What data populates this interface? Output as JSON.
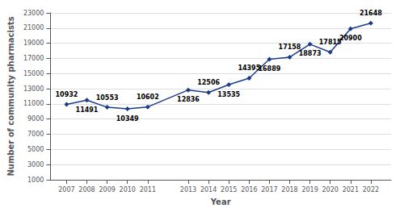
{
  "chart_data": {
    "type": "line",
    "xlabel": "Year",
    "ylabel": "Number of community pharmacists",
    "x": [
      2007,
      2008,
      2009,
      2010,
      2011,
      2013,
      2014,
      2015,
      2016,
      2017,
      2018,
      2019,
      2020,
      2021,
      2022
    ],
    "values": [
      10932,
      11491,
      10553,
      10349,
      10602,
      12836,
      12506,
      13535,
      14395,
      16889,
      17158,
      18873,
      17815,
      20900,
      21648
    ],
    "color": "#1a3a8c",
    "marker": "diamond",
    "xlim": [
      2006.2,
      2023.0
    ],
    "xticks": [
      2007,
      2008,
      2009,
      2010,
      2011,
      2013,
      2014,
      2015,
      2016,
      2017,
      2018,
      2019,
      2020,
      2021,
      2022
    ],
    "ylim": [
      1000,
      23000
    ],
    "yticks": [
      1000,
      3000,
      5000,
      7000,
      9000,
      11000,
      13000,
      15000,
      17000,
      19000,
      21000,
      23000
    ],
    "grid": true,
    "data_labels": true
  }
}
